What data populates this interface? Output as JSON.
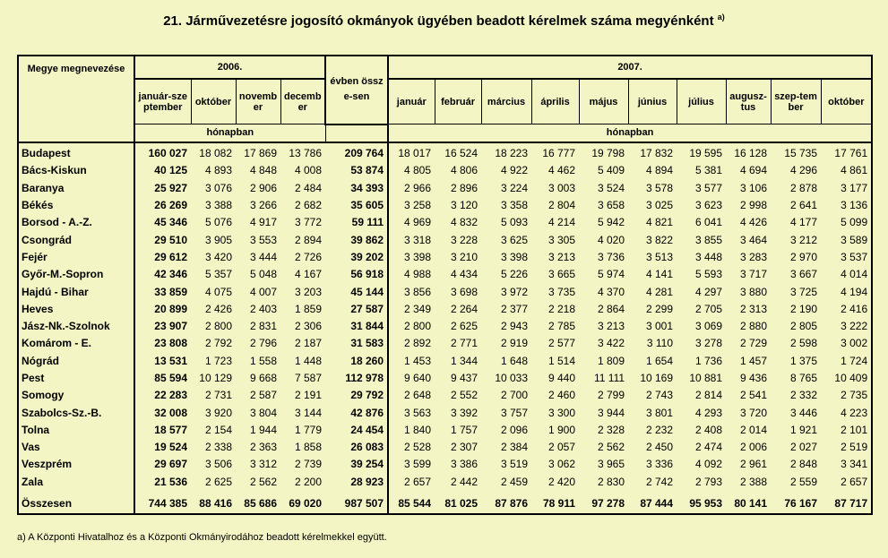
{
  "title": "21. Járművezetésre jogosító okmányok ügyében beadott kérelmek száma megyénként",
  "title_note": "a)",
  "header": {
    "county_label": "Megye megnevezése",
    "year_2006": "2006.",
    "year_2007": "2007.",
    "months_2006": [
      "január-szeptember",
      "október",
      "november",
      "december"
    ],
    "total_label": "évben össze-sen",
    "months_2007": [
      "január",
      "február",
      "március",
      "április",
      "május",
      "június",
      "július",
      "augusz-tus",
      "szep-tember",
      "október"
    ],
    "unit_2006": "hónapban",
    "unit_2007": "hónapban"
  },
  "rows": [
    {
      "name": "Budapest",
      "v": [
        "160 027",
        "18 082",
        "17 869",
        "13 786",
        "209 764",
        "18 017",
        "16 524",
        "18 223",
        "16 777",
        "19 798",
        "17 832",
        "19 595",
        "16 128",
        "15 735",
        "17 761"
      ]
    },
    {
      "name": "Bács-Kiskun",
      "v": [
        "40 125",
        "4 893",
        "4 848",
        "4 008",
        "53 874",
        "4 805",
        "4 806",
        "4 922",
        "4 462",
        "5 409",
        "4 894",
        "5 381",
        "4 694",
        "4 296",
        "4 861"
      ]
    },
    {
      "name": "Baranya",
      "v": [
        "25 927",
        "3 076",
        "2 906",
        "2 484",
        "34 393",
        "2 966",
        "2 896",
        "3 224",
        "3 003",
        "3 524",
        "3 578",
        "3 577",
        "3 106",
        "2 878",
        "3 177"
      ]
    },
    {
      "name": "Békés",
      "v": [
        "26 269",
        "3 388",
        "3 266",
        "2 682",
        "35 605",
        "3 258",
        "3 120",
        "3 358",
        "2 804",
        "3 658",
        "3 025",
        "3 623",
        "2 998",
        "2 641",
        "3 136"
      ]
    },
    {
      "name": "Borsod - A.-Z.",
      "v": [
        "45 346",
        "5 076",
        "4 917",
        "3 772",
        "59 111",
        "4 969",
        "4 832",
        "5 093",
        "4 214",
        "5 942",
        "4 821",
        "6 041",
        "4 426",
        "4 177",
        "5 099"
      ]
    },
    {
      "name": "Csongrád",
      "v": [
        "29 510",
        "3 905",
        "3 553",
        "2 894",
        "39 862",
        "3 318",
        "3 228",
        "3 625",
        "3 305",
        "4 020",
        "3 822",
        "3 855",
        "3 464",
        "3 212",
        "3 589"
      ]
    },
    {
      "name": "Fejér",
      "v": [
        "29 612",
        "3 420",
        "3 444",
        "2 726",
        "39 202",
        "3 398",
        "3 210",
        "3 398",
        "3 213",
        "3 736",
        "3 513",
        "3 448",
        "3 283",
        "2 970",
        "3 537"
      ]
    },
    {
      "name": "Győr-M.-Sopron",
      "v": [
        "42 346",
        "5 357",
        "5 048",
        "4 167",
        "56 918",
        "4 988",
        "4 434",
        "5 226",
        "3 665",
        "5 974",
        "4 141",
        "5 593",
        "3 717",
        "3 667",
        "4 014"
      ]
    },
    {
      "name": "Hajdú - Bihar",
      "v": [
        "33 859",
        "4 075",
        "4 007",
        "3 203",
        "45 144",
        "3 856",
        "3 698",
        "3 972",
        "3 735",
        "4 370",
        "4 281",
        "4 297",
        "3 880",
        "3 725",
        "4 194"
      ]
    },
    {
      "name": "Heves",
      "v": [
        "20 899",
        "2 426",
        "2 403",
        "1 859",
        "27 587",
        "2 349",
        "2 264",
        "2 377",
        "2 218",
        "2 864",
        "2 299",
        "2 705",
        "2 313",
        "2 190",
        "2 416"
      ]
    },
    {
      "name": "Jász-Nk.-Szolnok",
      "v": [
        "23 907",
        "2 800",
        "2 831",
        "2 306",
        "31 844",
        "2 800",
        "2 625",
        "2 943",
        "2 785",
        "3 213",
        "3 001",
        "3 069",
        "2 880",
        "2 805",
        "3 222"
      ]
    },
    {
      "name": "Komárom - E.",
      "v": [
        "23 808",
        "2 792",
        "2 796",
        "2 187",
        "31 583",
        "2 892",
        "2 771",
        "2 919",
        "2 577",
        "3 422",
        "3 110",
        "3 278",
        "2 729",
        "2 598",
        "3 002"
      ]
    },
    {
      "name": "Nógrád",
      "v": [
        "13 531",
        "1 723",
        "1 558",
        "1 448",
        "18 260",
        "1 453",
        "1 344",
        "1 648",
        "1 514",
        "1 809",
        "1 654",
        "1 736",
        "1 457",
        "1 375",
        "1 724"
      ]
    },
    {
      "name": "Pest",
      "v": [
        "85 594",
        "10 129",
        "9 668",
        "7 587",
        "112 978",
        "9 640",
        "9 437",
        "10 033",
        "9 440",
        "11 111",
        "10 169",
        "10 881",
        "9 436",
        "8 765",
        "10 409"
      ]
    },
    {
      "name": "Somogy",
      "v": [
        "22 283",
        "2 731",
        "2 587",
        "2 191",
        "29 792",
        "2 648",
        "2 552",
        "2 700",
        "2 460",
        "2 799",
        "2 743",
        "2 814",
        "2 541",
        "2 332",
        "2 735"
      ]
    },
    {
      "name": "Szabolcs-Sz.-B.",
      "v": [
        "32 008",
        "3 920",
        "3 804",
        "3 144",
        "42 876",
        "3 563",
        "3 392",
        "3 757",
        "3 300",
        "3 944",
        "3 801",
        "4 293",
        "3 720",
        "3 446",
        "4 223"
      ]
    },
    {
      "name": "Tolna",
      "v": [
        "18 577",
        "2 154",
        "1 944",
        "1 779",
        "24 454",
        "1 840",
        "1 757",
        "2 096",
        "1 900",
        "2 328",
        "2 232",
        "2 408",
        "2 014",
        "1 921",
        "2 101"
      ]
    },
    {
      "name": "Vas",
      "v": [
        "19 524",
        "2 338",
        "2 363",
        "1 858",
        "26 083",
        "2 528",
        "2 307",
        "2 384",
        "2 057",
        "2 562",
        "2 450",
        "2 474",
        "2 006",
        "2 027",
        "2 519"
      ]
    },
    {
      "name": "Veszprém",
      "v": [
        "29 697",
        "3 506",
        "3 312",
        "2 739",
        "39 254",
        "3 599",
        "3 386",
        "3 519",
        "3 062",
        "3 965",
        "3 336",
        "4 092",
        "2 961",
        "2 848",
        "3 341"
      ]
    },
    {
      "name": "Zala",
      "v": [
        "21 536",
        "2 625",
        "2 562",
        "2 200",
        "28 923",
        "2 657",
        "2 442",
        "2 459",
        "2 420",
        "2 830",
        "2 742",
        "2 793",
        "2 388",
        "2 559",
        "2 657"
      ]
    }
  ],
  "total": {
    "name": "Összesen",
    "v": [
      "744 385",
      "88 416",
      "85 686",
      "69 020",
      "987 507",
      "85 544",
      "81 025",
      "87 876",
      "78 911",
      "97 278",
      "87 444",
      "95 953",
      "80 141",
      "76 167",
      "87 717"
    ]
  },
  "footnote": "a) A Központi Hivatalhoz és a Központi Okmányirodához beadott kérelmekkel együtt."
}
